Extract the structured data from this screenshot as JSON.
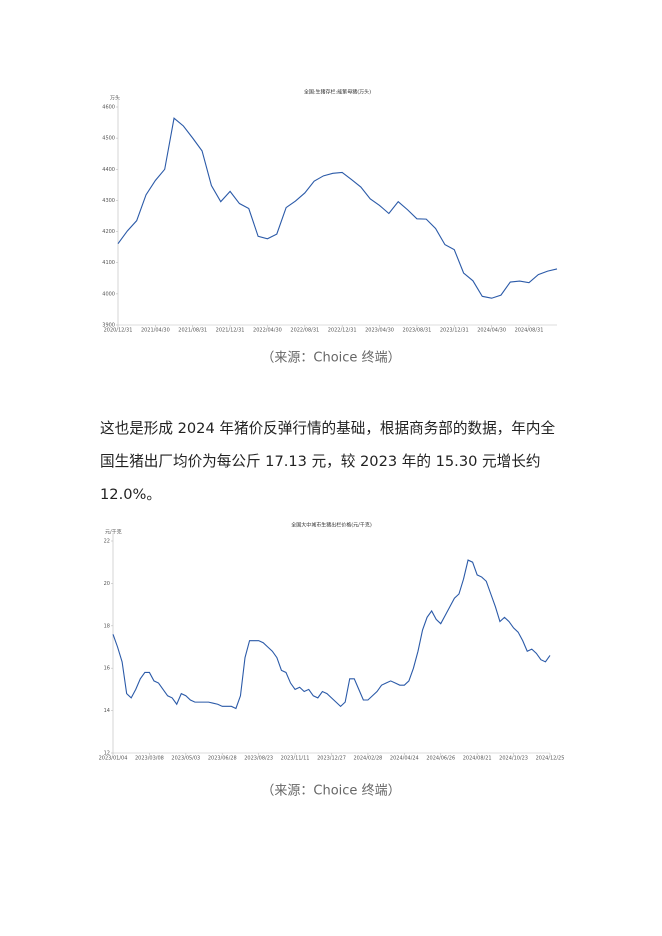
{
  "chart_data": [
    {
      "type": "line",
      "title": "全国:生猪存栏:能繁母猪(万头)",
      "ylabel": "万头",
      "color": "#2b5aa8",
      "categories": [
        "2020/12/31",
        null,
        null,
        null,
        "2021/04/30",
        null,
        null,
        null,
        "2021/08/31",
        null,
        null,
        null,
        "2021/12/31",
        null,
        null,
        null,
        "2022/04/30",
        null,
        null,
        null,
        "2022/08/31",
        null,
        null,
        null,
        "2022/12/31",
        null,
        null,
        null,
        "2023/04/30",
        null,
        null,
        null,
        "2023/08/31",
        null,
        null,
        null,
        "2023/12/31",
        null,
        null,
        null,
        "2024/04/30",
        null,
        null,
        null,
        "2024/08/31",
        null,
        null,
        null
      ],
      "values": [
        4161,
        4202,
        4235,
        4318,
        4364,
        4400,
        4564,
        4539,
        4500,
        4459,
        4348,
        4296,
        4329,
        4290,
        4274,
        4185,
        4177,
        4192,
        4277,
        4298,
        4324,
        4362,
        4379,
        4387,
        4390,
        4367,
        4343,
        4305,
        4284,
        4258,
        4296,
        4270,
        4241,
        4240,
        4210,
        4158,
        4142,
        4067,
        4042,
        3992,
        3986,
        3996,
        4038,
        4041,
        4036,
        4062,
        4073,
        4080
      ],
      "ylim": [
        3900,
        4600
      ],
      "yticks": [
        3900,
        4000,
        4100,
        4200,
        4300,
        4400,
        4500,
        4600
      ]
    },
    {
      "type": "line",
      "title": "全国大中城市生猪出栏价格(元/千克)",
      "ylabel": "元/千克",
      "color": "#2b5aa8",
      "categories": [
        "2023/01/04",
        null,
        null,
        null,
        null,
        null,
        null,
        null,
        "2023/03/08",
        null,
        null,
        null,
        null,
        null,
        null,
        null,
        "2023/05/03",
        null,
        null,
        null,
        null,
        null,
        null,
        null,
        "2023/06/28",
        null,
        null,
        null,
        null,
        null,
        null,
        null,
        "2023/08/23",
        null,
        null,
        null,
        null,
        null,
        null,
        null,
        "2023/11/11",
        null,
        null,
        null,
        null,
        null,
        null,
        null,
        "2023/12/27",
        null,
        null,
        null,
        null,
        null,
        null,
        null,
        "2024/02/28",
        null,
        null,
        null,
        null,
        null,
        null,
        null,
        "2024/04/24",
        null,
        null,
        null,
        null,
        null,
        null,
        null,
        "2024/06/26",
        null,
        null,
        null,
        null,
        null,
        null,
        null,
        "2024/08/21",
        null,
        null,
        null,
        null,
        null,
        null,
        null,
        "2024/10/23",
        null,
        null,
        null,
        null,
        null,
        null,
        null,
        "2024/12/25"
      ],
      "values": [
        17.6,
        17.0,
        16.3,
        14.8,
        14.6,
        15.0,
        15.5,
        15.8,
        15.8,
        15.4,
        15.3,
        15.0,
        14.7,
        14.6,
        14.3,
        14.8,
        14.7,
        14.5,
        14.4,
        14.4,
        14.4,
        14.4,
        14.35,
        14.3,
        14.2,
        14.2,
        14.2,
        14.1,
        14.7,
        16.5,
        17.3,
        17.3,
        17.3,
        17.2,
        17.0,
        16.8,
        16.5,
        15.9,
        15.8,
        15.3,
        15.0,
        15.1,
        14.9,
        15.0,
        14.7,
        14.6,
        14.9,
        14.8,
        14.6,
        14.4,
        14.2,
        14.4,
        15.5,
        15.5,
        15.0,
        14.5,
        14.5,
        14.7,
        14.9,
        15.2,
        15.3,
        15.4,
        15.3,
        15.2,
        15.2,
        15.4,
        16.0,
        16.8,
        17.8,
        18.4,
        18.7,
        18.3,
        18.1,
        18.5,
        18.9,
        19.3,
        19.5,
        20.2,
        21.1,
        21.0,
        20.4,
        20.3,
        20.1,
        19.5,
        18.9,
        18.2,
        18.4,
        18.2,
        17.9,
        17.7,
        17.3,
        16.8,
        16.9,
        16.7,
        16.4,
        16.3,
        16.6
      ],
      "ylim": [
        12,
        22
      ],
      "yticks": [
        12,
        14,
        16,
        18,
        20,
        22
      ]
    }
  ],
  "document": {
    "captions": [
      "（来源：Choice 终端）",
      "（来源：Choice 终端）"
    ],
    "paragraph": "这也是形成 2024 年猪价反弹行情的基础，根据商务部的数据，年内全国生猪出厂均价为每公斤 17.13 元，较 2023 年的 15.30 元增长约 12.0%。"
  }
}
